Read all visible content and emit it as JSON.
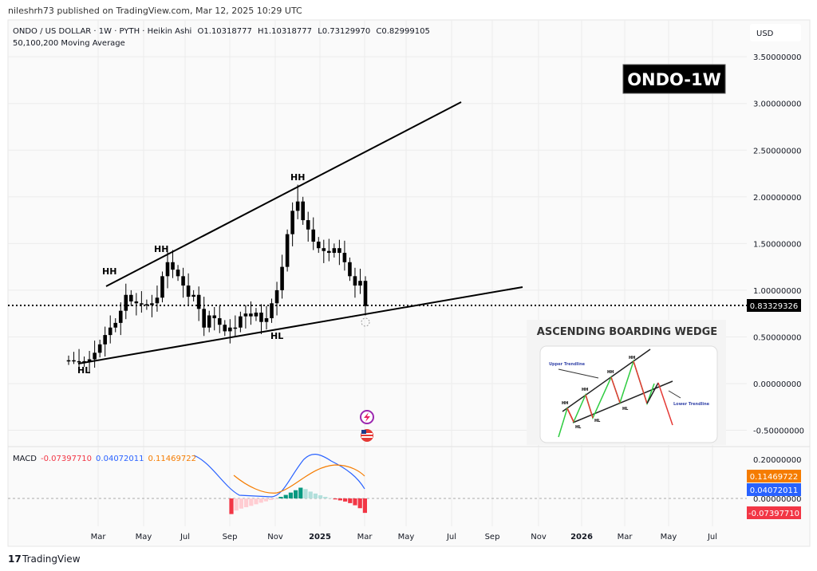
{
  "header": {
    "published": "nileshrh73 published on TradingView.com, Mar 12, 2025 10:29 UTC",
    "symbol_line": "ONDO / US DOLLAR · 1W · PYTH · Heikin Ashi",
    "open": "O1.10318777",
    "high": "H1.10318777",
    "low": "L0.73129970",
    "close": "C0.82999105",
    "indicator": "50,100,200 Moving Average"
  },
  "currency": "USD",
  "badge": "ONDO-1W",
  "price_axis": [
    "3.50000000",
    "3.00000000",
    "2.50000000",
    "2.00000000",
    "1.50000000",
    "1.00000000",
    "0.50000000",
    "0.00000000",
    "-0.50000000"
  ],
  "current_price": "0.83329326",
  "annotations": {
    "hh": "HH",
    "hl": "HL"
  },
  "inset": {
    "title": "ASCENDING BOARDING WEDGE",
    "upper": "Upper Trendline",
    "lower": "Lower Trendline",
    "hh": "HH",
    "hl": "HL"
  },
  "macd": {
    "label": "MACD",
    "hist": "-0.07397710",
    "macd": "0.04072011",
    "signal": "0.11469722",
    "axis": [
      "0.20000000",
      "0.00000000"
    ],
    "colors": {
      "macd": "#2962ff",
      "signal": "#f57c00",
      "neg": "#f23645",
      "pos": "#089981"
    }
  },
  "time_axis": [
    "Mar",
    "May",
    "Jul",
    "Sep",
    "Nov",
    "2025",
    "Mar",
    "May",
    "Jul",
    "Sep",
    "Nov",
    "2026",
    "Mar",
    "May",
    "Jul"
  ],
  "footer": {
    "brand": "TradingView"
  },
  "chart_data": {
    "type": "candlestick",
    "title": "ONDO / US DOLLAR · 1W · PYTH · Heikin Ashi",
    "ylim": [
      -0.6,
      3.6
    ],
    "closes": [
      0.25,
      0.24,
      0.23,
      0.24,
      0.26,
      0.33,
      0.42,
      0.52,
      0.6,
      0.65,
      0.78,
      0.95,
      0.88,
      0.86,
      0.85,
      0.84,
      0.86,
      0.92,
      1.15,
      1.3,
      1.22,
      1.15,
      1.05,
      0.93,
      0.95,
      0.8,
      0.6,
      0.73,
      0.7,
      0.63,
      0.56,
      0.6,
      0.6,
      0.72,
      0.75,
      0.72,
      0.76,
      0.66,
      0.7,
      0.86,
      1.0,
      1.25,
      1.6,
      1.85,
      1.95,
      1.75,
      1.65,
      1.52,
      1.45,
      1.42,
      1.4,
      1.45,
      1.4,
      1.3,
      1.15,
      1.05,
      1.1,
      0.83
    ],
    "special_highs": {
      "11": 1.07,
      "19": 1.42,
      "44": 2.13
    },
    "special_lows": {
      "1": 0.21,
      "38": 0.58,
      "57": 0.73
    },
    "macd_series": {
      "histogram": [
        -0.08,
        -0.062,
        -0.052,
        -0.045,
        -0.038,
        -0.03,
        -0.022,
        -0.015,
        -0.008,
        -0.003,
        0.008,
        0.018,
        0.03,
        0.042,
        0.055,
        0.048,
        0.035,
        0.025,
        0.016,
        0.008,
        0.002,
        -0.005,
        -0.01,
        -0.016,
        -0.024,
        -0.035,
        -0.05,
        -0.074
      ],
      "macd_last": 0.04072011,
      "signal_last": 0.11469722
    }
  }
}
